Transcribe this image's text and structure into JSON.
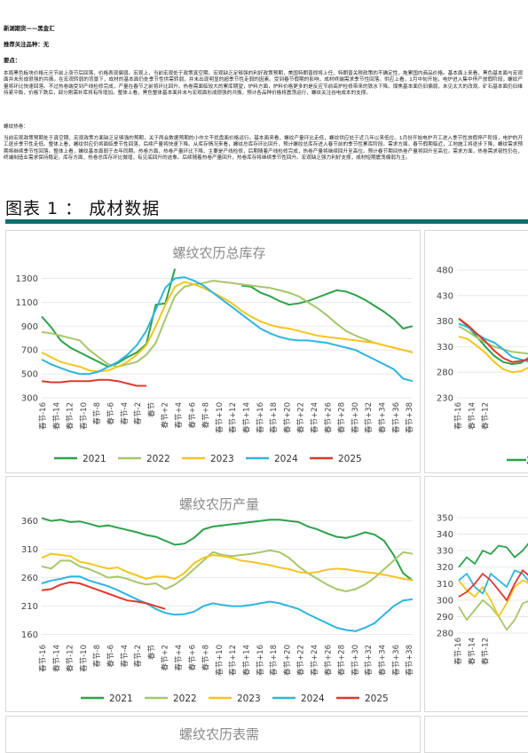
{
  "header": {
    "line1": "新湖期货——黑金汇",
    "line2": "推荐关注品种：无",
    "line3": "要点："
  },
  "paragraph1": "本周黑色板块价格元旦节前上涨节后回落，价格表现偏弱。宏观上，当前宏观处于政策真空期，宏观缺乏足够强的利好政策预期，美国特朗普即将上任，特朗普关税政策的不确定性，拖累国内商品价格。基本面上来看，黑色基本面与宏观面并未形成很强的共振。在宏观转弱的背景下，成材的基本面仍处季节性供需转弱，并未出现明显的超季节性走弱的因素。受到春节假期的影响，成材终端需求季节性回落。供应上看，1月中旬开始，电炉进入集中停产放假阶段，螺纹产量将环比快速回落。不过热卷端受到产线检修完成，产量在春节之前将环比回升。热卷需面临较大的累库期望，炉料方面，炉料价格更多的是反应节前高炉检修带来的铁水下降。煤焦基本面仍旧偏弱，未见太大的改观。矿石基本面仍旧维持紧平衡，价格下跌后，部分刚需补库将有所增加。整体上看，黑色整体基本面并未与宏观面形成很强的共振，预计各品种价格将震荡运行，螺纹关注谷电成本的支撑。",
  "label2": "螺纹热卷：",
  "paragraph2": "当前宏观政策预期处于真空期，宏观政策方面缺乏足够强的预期，关于两会数据预期的小作文干扰盘面价格运行。基本面来看，螺纹产量环比走低，螺纹供应处于近几年以来低位。1月份开始电炉开工进入季节性放假停产阶段，电炉的开工逐步季节性走低。整体上看，螺纹供应仍将面临季节性回落，后续产量将快速下降。从库存情况来看，螺纹总库存环比回升，预计螺纹总库存进入春节前的季节性累库阶段。需求方面，春节假期临近，工地施工将逐步下降，螺纹需求预期将继续季节性回落。整体上看，螺纹基本面弱于去年同期。热卷方面，热卷产量环比下降，主要是产线检修，后期随着产线检修完成，热卷产量将继续回升至高位。预计春节期间热卷产量将回升至高位。需求方面，热卷需求韧性仍在，终端制造业需求保持稳定。库存方面，热卷总库存环比微增，有见底回升的迹象。后续随着热卷产量回升，热卷库存将继续季节性回升。宏观缺乏强力利好支撑，成材短期震荡偏弱为主。",
  "figure_title": "图表 1 ：  成材数据",
  "legend_years": [
    "2021",
    "2022",
    "2023",
    "2024",
    "2025"
  ],
  "series_colors": {
    "2021": "#2ca24a",
    "2022": "#a7c66b",
    "2023": "#f3c521",
    "2024": "#2fb5e0",
    "2025": "#e0382f"
  },
  "chart_inventory": {
    "title": "螺纹农历总库存",
    "y_ticks": [
      "1300",
      "1100",
      "900",
      "700",
      "500",
      "300"
    ],
    "y_range": [
      300,
      1400
    ],
    "x_ticks": [
      "春节-16",
      "春节-14",
      "春节-12",
      "春节-10",
      "春节-8",
      "春节-6",
      "春节-4",
      "春节-2",
      "春节",
      "春节+2",
      "春节+4",
      "春节+6",
      "春节+8",
      "春节+10",
      "春节+12",
      "春节+14",
      "春节+16",
      "春节+18",
      "春节+20",
      "春节+22",
      "春节+24",
      "春节+26",
      "春节+28",
      "春节+30",
      "春节+32",
      "春节+34",
      "春节+36",
      "春节+38"
    ],
    "series": [
      {
        "name": "2021",
        "values": [
          980,
          890,
          780,
          720,
          680,
          640,
          600,
          560,
          590,
          640,
          680,
          750,
          1080,
          1090,
          1380,
          null,
          null,
          null,
          null,
          null,
          null,
          1240,
          1230,
          1180,
          1150,
          1110,
          1080,
          1090,
          1110,
          1140,
          1170,
          1200,
          1190,
          1160,
          1120,
          1070,
          1020,
          960,
          880,
          900
        ]
      },
      {
        "name": "2022",
        "values": [
          850,
          840,
          820,
          800,
          780,
          700,
          640,
          580,
          560,
          580,
          600,
          660,
          760,
          960,
          1150,
          1230,
          1250,
          1260,
          1280,
          1270,
          1260,
          1250,
          1240,
          1230,
          1220,
          1200,
          1180,
          1150,
          1100,
          1050,
          990,
          920,
          860,
          820,
          790,
          760,
          740,
          720,
          700,
          680
        ]
      },
      {
        "name": "2023",
        "values": [
          680,
          640,
          600,
          580,
          560,
          530,
          520,
          530,
          560,
          600,
          660,
          740,
          900,
          1080,
          1230,
          1270,
          1250,
          1220,
          1180,
          1140,
          1090,
          1030,
          980,
          940,
          910,
          890,
          880,
          860,
          840,
          820,
          810,
          800,
          790,
          780,
          770,
          760,
          740,
          720,
          700,
          680
        ]
      },
      {
        "name": "2024",
        "values": [
          620,
          580,
          550,
          520,
          500,
          500,
          520,
          560,
          600,
          660,
          740,
          860,
          1040,
          1220,
          1300,
          1310,
          1280,
          1240,
          1180,
          1120,
          1060,
          1000,
          940,
          880,
          840,
          810,
          790,
          780,
          780,
          770,
          760,
          740,
          720,
          700,
          660,
          620,
          580,
          540,
          460,
          440
        ]
      },
      {
        "name": "2025",
        "values": [
          440,
          430,
          430,
          440,
          440,
          440,
          450,
          450,
          440,
          420,
          400,
          400
        ]
      }
    ]
  },
  "chart_inventory_hrc": {
    "y_ticks": [
      "480",
      "430",
      "380",
      "330",
      "280",
      "230"
    ],
    "y_range": [
      230,
      480
    ],
    "x_ticks": [
      "春节-16",
      "春节-14",
      "春节-12"
    ],
    "legend_partial": "20"
  },
  "chart_output": {
    "title": "螺纹农历产量",
    "y_ticks": [
      "360",
      "310",
      "260",
      "210",
      "160"
    ],
    "y_range": [
      150,
      375
    ],
    "x_ticks": [
      "春节-16",
      "春节-14",
      "春节-12",
      "春节-10",
      "春节-8",
      "春节-6",
      "春节-4",
      "春节-2",
      "春节",
      "春节+2",
      "春节+4",
      "春节+6",
      "春节+8",
      "春节+10",
      "春节+12",
      "春节+14",
      "春节+16",
      "春节+18",
      "春节+20",
      "春节+22",
      "春节+24",
      "春节+26",
      "春节+28",
      "春节+30",
      "春节+32",
      "春节+34",
      "春节+36",
      "春节+38"
    ],
    "series": [
      {
        "name": "2021",
        "values": [
          365,
          360,
          362,
          358,
          359,
          355,
          350,
          352,
          348,
          344,
          340,
          335,
          332,
          325,
          318,
          320,
          330,
          345,
          350,
          352,
          354,
          356,
          358,
          360,
          362,
          362,
          360,
          358,
          350,
          345,
          338,
          332,
          330,
          334,
          340,
          336,
          325,
          300,
          268,
          255
        ]
      },
      {
        "name": "2022",
        "values": [
          280,
          276,
          290,
          290,
          280,
          275,
          268,
          260,
          262,
          258,
          252,
          248,
          250,
          240,
          248,
          260,
          275,
          290,
          305,
          300,
          298,
          300,
          302,
          305,
          308,
          305,
          295,
          280,
          268,
          258,
          248,
          240,
          236,
          240,
          248,
          260,
          275,
          290,
          305,
          302
        ]
      },
      {
        "name": "2023",
        "values": [
          295,
          302,
          300,
          298,
          288,
          285,
          280,
          276,
          278,
          270,
          264,
          258,
          262,
          262,
          258,
          268,
          285,
          295,
          300,
          298,
          295,
          290,
          288,
          285,
          282,
          278,
          275,
          270,
          268,
          270,
          274,
          276,
          275,
          272,
          270,
          268,
          265,
          262,
          258,
          256
        ]
      },
      {
        "name": "2024",
        "values": [
          250,
          255,
          258,
          262,
          262,
          255,
          250,
          245,
          238,
          230,
          222,
          215,
          205,
          198,
          195,
          196,
          200,
          210,
          215,
          212,
          210,
          210,
          212,
          215,
          218,
          215,
          210,
          205,
          196,
          188,
          180,
          172,
          168,
          166,
          172,
          180,
          195,
          210,
          220,
          222
        ]
      },
      {
        "name": "2025",
        "values": [
          238,
          240,
          248,
          252,
          250,
          244,
          238,
          232,
          226,
          220,
          218,
          215,
          210,
          205
        ]
      }
    ]
  },
  "chart_output_hrc": {
    "y_ticks": [
      "350",
      "340",
      "330",
      "320",
      "310",
      "300",
      "290",
      "280"
    ],
    "y_range": [
      280,
      350
    ],
    "x_ticks": [
      "春节-16",
      "春节-14",
      "春节-12"
    ]
  },
  "chart_third": {
    "title": "螺纹农历表需"
  }
}
